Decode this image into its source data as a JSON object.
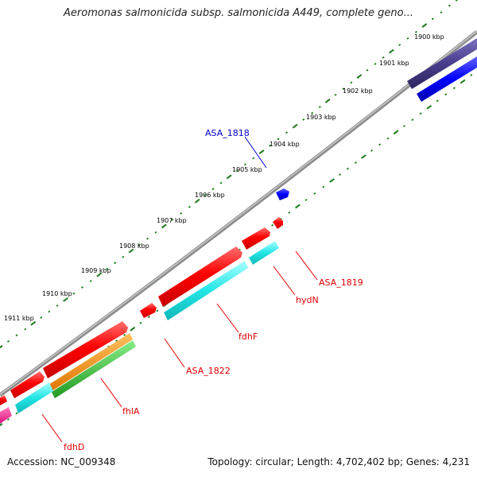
{
  "title": "Aeromonas salmonicida subsp. salmonicida A449, complete geno...",
  "footer": {
    "accession": "Accession: NC_009348",
    "topology": "Topology: circular; Length: 4,702,402 bp; Genes: 4,231"
  },
  "ruler_labels": [
    "1900 kbp",
    "1901 kbp",
    "1902 kbp",
    "1903 kbp",
    "1904 kbp",
    "1905 kbp",
    "1906 kbp",
    "1907 kbp",
    "1908 kbp",
    "1909 kbp",
    "1910 kbp",
    "1911 kbp"
  ],
  "gene_labels": {
    "asa_1818": "ASA_1818",
    "asa_1819": "ASA_1819",
    "hydN": "hydN",
    "fdhF": "fdhF",
    "asa_1822": "ASA_1822",
    "fhlA": "fhlA",
    "fdhD": "fdhD"
  },
  "colors": {
    "backbone": "#8c8c8c",
    "ruler": "#1a7a1a",
    "red_gene": "#ff0000",
    "cds": "#22e5e5",
    "orange": "#ff8c00",
    "green": "#33bb33",
    "blue_gene": "#0000ff",
    "dark_blue": "#483d8b",
    "pink": "#ff1493",
    "label_red": "#e00000",
    "label_blue": "#0000cc"
  }
}
